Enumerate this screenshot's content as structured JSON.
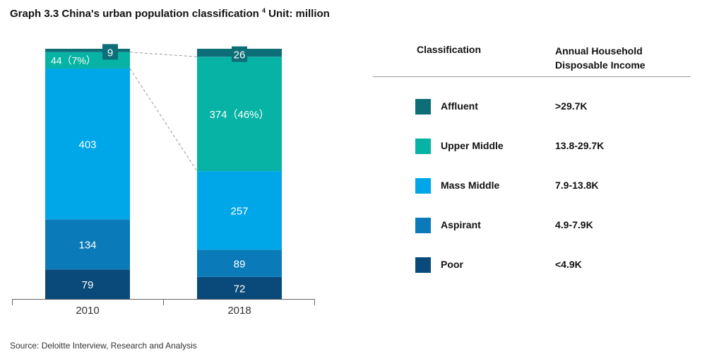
{
  "title": "Graph 3.3 China's urban population classification",
  "title_superscript": "4",
  "title_unit": "Unit: million",
  "chart_data": {
    "type": "bar",
    "stacked": true,
    "categories": [
      "2010",
      "2018"
    ],
    "series": [
      {
        "name": "Poor",
        "values": [
          79,
          72
        ],
        "labels": [
          "79",
          "72"
        ],
        "color": "#0a4a7a"
      },
      {
        "name": "Aspirant",
        "values": [
          134,
          89
        ],
        "labels": [
          "134",
          "89"
        ],
        "color": "#0a7bb8"
      },
      {
        "name": "Mass Middle",
        "values": [
          403,
          257
        ],
        "labels": [
          "403",
          "257"
        ],
        "color": "#00a7e8"
      },
      {
        "name": "Upper Middle",
        "values": [
          44,
          374
        ],
        "labels": [
          "44（7%）",
          "374（46%）"
        ],
        "color": "#07b3a4"
      },
      {
        "name": "Affluent",
        "values": [
          9,
          26
        ],
        "labels": [
          "9",
          "26"
        ],
        "color": "#0d6e78"
      }
    ],
    "grid": false,
    "legend_placement": "right"
  },
  "legend": {
    "header_class": "Classification",
    "header_income": "Annual Household Disposable Income",
    "rows": [
      {
        "name": "Affluent",
        "range": ">29.7K",
        "color": "#0d6e78"
      },
      {
        "name": "Upper Middle",
        "range": "13.8-29.7K",
        "color": "#07b3a4"
      },
      {
        "name": "Mass Middle",
        "range": "7.9-13.8K",
        "color": "#00a7e8"
      },
      {
        "name": "Aspirant",
        "range": "4.9-7.9K",
        "color": "#0a7bb8"
      },
      {
        "name": "Poor",
        "range": "<4.9K",
        "color": "#0a4a7a"
      }
    ]
  },
  "source": "Source: Deloitte Interview, Research and Analysis"
}
